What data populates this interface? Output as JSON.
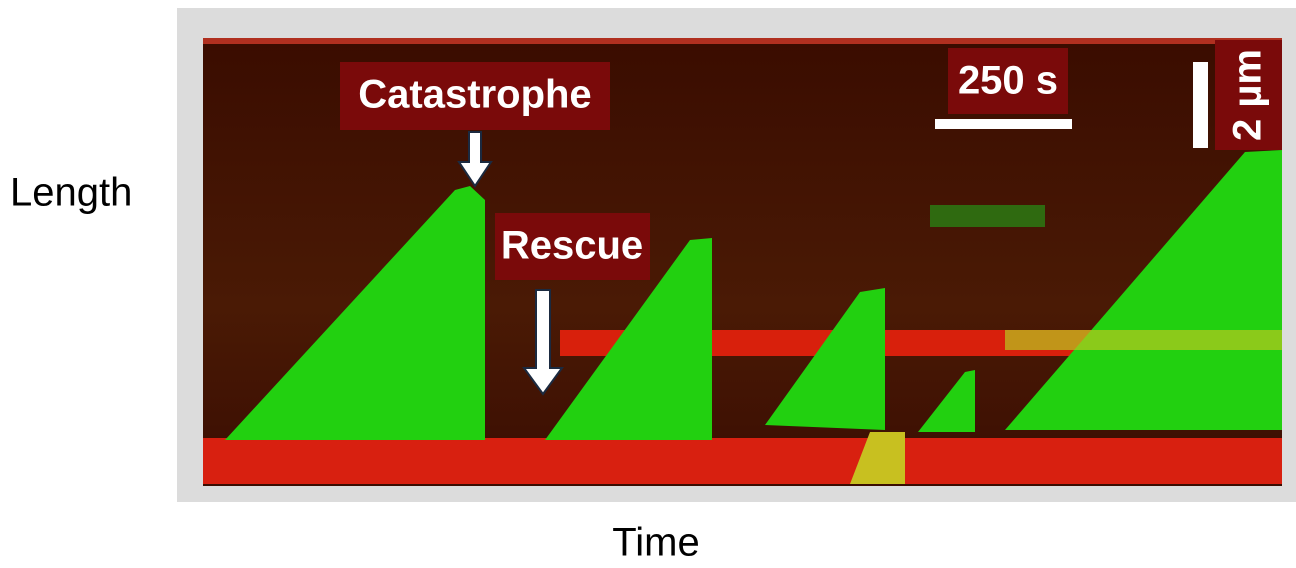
{
  "axis_labels": {
    "y": "Length",
    "x": "Time"
  },
  "annotations": {
    "catastrophe": "Catastrophe",
    "rescue": "Rescue"
  },
  "scale_bars": {
    "time": "250 s",
    "length": "2 µm"
  }
}
